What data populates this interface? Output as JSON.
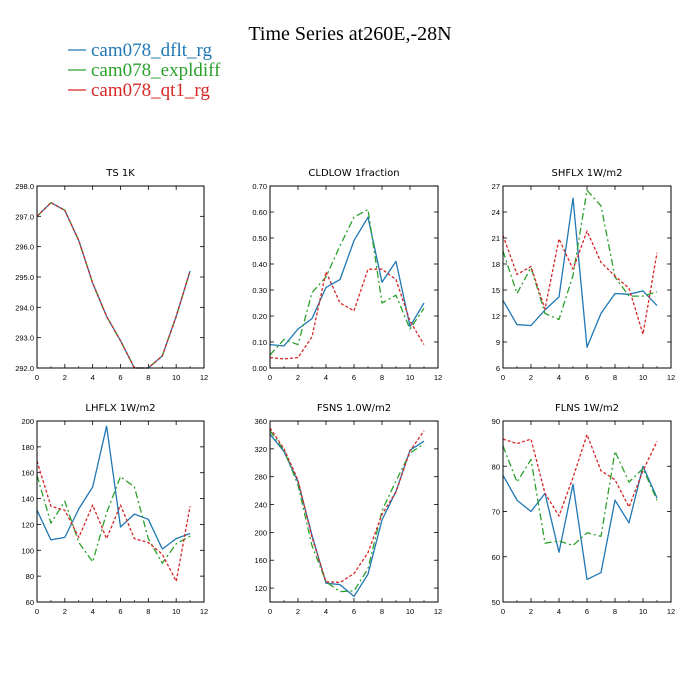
{
  "title": "Time Series at260E,-28N",
  "legend": [
    {
      "name": "cam078_dflt_rg",
      "color": "#1f77b4",
      "dash": ""
    },
    {
      "name": "cam078_expldiff",
      "color": "#2ca02c",
      "dash": "7,3,2,3"
    },
    {
      "name": "cam078_qt1_rg",
      "color": "#d62728",
      "dash": "3,2"
    }
  ],
  "chart_data": [
    {
      "type": "line",
      "title": "TS   1K",
      "x": [
        0,
        1,
        2,
        3,
        4,
        5,
        6,
        7,
        8,
        9,
        10,
        11
      ],
      "xlim": [
        0,
        12
      ],
      "xticks": [
        0,
        2,
        4,
        6,
        8,
        10,
        12
      ],
      "ylim": [
        292.0,
        298.0
      ],
      "yticks": [
        "292.0",
        "293.0",
        "294.0",
        "295.0",
        "296.0",
        "297.0",
        "298.0"
      ],
      "series": [
        {
          "name": "cam078_dflt_rg",
          "values": [
            297.0,
            297.45,
            297.2,
            296.2,
            294.8,
            293.7,
            292.9,
            292.0,
            292.0,
            292.4,
            293.7,
            295.2
          ]
        },
        {
          "name": "cam078_expldiff",
          "values": [
            297.0,
            297.45,
            297.2,
            296.2,
            294.8,
            293.7,
            292.9,
            292.0,
            292.0,
            292.4,
            293.7,
            295.2
          ]
        },
        {
          "name": "cam078_qt1_rg",
          "values": [
            297.0,
            297.45,
            297.2,
            296.2,
            294.8,
            293.7,
            292.9,
            292.0,
            292.0,
            292.4,
            293.7,
            295.2
          ]
        }
      ]
    },
    {
      "type": "line",
      "title": "CLDLOW   1fraction",
      "x": [
        0,
        1,
        2,
        3,
        4,
        5,
        6,
        7,
        8,
        9,
        10,
        11
      ],
      "xlim": [
        0,
        12
      ],
      "xticks": [
        0,
        2,
        4,
        6,
        8,
        10,
        12
      ],
      "ylim": [
        0.0,
        0.7
      ],
      "yticks": [
        "0.00",
        "0.10",
        "0.20",
        "0.30",
        "0.40",
        "0.50",
        "0.60",
        "0.70"
      ],
      "series": [
        {
          "name": "cam078_dflt_rg",
          "values": [
            0.09,
            0.085,
            0.15,
            0.19,
            0.31,
            0.34,
            0.49,
            0.58,
            0.33,
            0.41,
            0.16,
            0.25
          ]
        },
        {
          "name": "cam078_expldiff",
          "values": [
            0.05,
            0.11,
            0.09,
            0.29,
            0.35,
            0.47,
            0.58,
            0.61,
            0.25,
            0.28,
            0.15,
            0.23
          ]
        },
        {
          "name": "cam078_qt1_rg",
          "values": [
            0.04,
            0.035,
            0.04,
            0.12,
            0.37,
            0.25,
            0.22,
            0.38,
            0.38,
            0.34,
            0.18,
            0.09
          ]
        }
      ]
    },
    {
      "type": "line",
      "title": "SHFLX   1W/m2",
      "x": [
        0,
        1,
        2,
        3,
        4,
        5,
        6,
        7,
        8,
        9,
        10,
        11
      ],
      "xlim": [
        0,
        12
      ],
      "xticks": [
        0,
        2,
        4,
        6,
        8,
        10,
        12
      ],
      "ylim": [
        6,
        27
      ],
      "yticks": [
        "6",
        "9",
        "12",
        "15",
        "18",
        "21",
        "24",
        "27"
      ],
      "series": [
        {
          "name": "cam078_dflt_rg",
          "values": [
            13.8,
            11.0,
            10.9,
            12.7,
            14.2,
            25.6,
            8.4,
            12.3,
            14.6,
            14.5,
            14.9,
            13.2
          ]
        },
        {
          "name": "cam078_expldiff",
          "values": [
            19.5,
            14.6,
            17.6,
            12.3,
            11.6,
            16.7,
            26.5,
            24.7,
            16.5,
            14.3,
            14.3,
            14.8
          ]
        },
        {
          "name": "cam078_qt1_rg",
          "values": [
            21.3,
            16.8,
            17.7,
            12.8,
            20.9,
            17.4,
            21.8,
            18.2,
            16.6,
            15.2,
            9.9,
            19.3
          ]
        }
      ]
    },
    {
      "type": "line",
      "title": "LHFLX   1W/m2",
      "x": [
        0,
        1,
        2,
        3,
        4,
        5,
        6,
        7,
        8,
        9,
        10,
        11
      ],
      "xlim": [
        0,
        12
      ],
      "xticks": [
        0,
        2,
        4,
        6,
        8,
        10,
        12
      ],
      "ylim": [
        60,
        200
      ],
      "yticks": [
        "60",
        "80",
        "100",
        "120",
        "140",
        "160",
        "180",
        "200"
      ],
      "series": [
        {
          "name": "cam078_dflt_rg",
          "values": [
            131,
            108,
            110,
            132,
            149,
            196,
            118,
            128,
            124,
            101,
            109,
            113
          ]
        },
        {
          "name": "cam078_expldiff",
          "values": [
            158,
            121,
            138,
            106,
            91,
            129,
            157,
            149,
            109,
            90,
            105,
            111
          ]
        },
        {
          "name": "cam078_qt1_rg",
          "values": [
            169,
            134,
            131,
            110,
            135,
            109,
            135,
            109,
            106,
            97,
            76,
            134
          ]
        }
      ]
    },
    {
      "type": "line",
      "title": "FSNS   1.0W/m2",
      "x": [
        0,
        1,
        2,
        3,
        4,
        5,
        6,
        7,
        8,
        9,
        10,
        11
      ],
      "xlim": [
        0,
        12
      ],
      "xticks": [
        0,
        2,
        4,
        6,
        8,
        10,
        12
      ],
      "ylim": [
        100,
        360
      ],
      "yticks": [
        "120",
        "160",
        "200",
        "240",
        "280",
        "320",
        "360"
      ],
      "series": [
        {
          "name": "cam078_dflt_rg",
          "values": [
            341,
            316,
            273,
            196,
            127,
            125,
            108,
            140,
            218,
            259,
            318,
            331
          ]
        },
        {
          "name": "cam078_expldiff",
          "values": [
            346,
            318,
            268,
            181,
            129,
            115,
            116,
            148,
            231,
            274,
            314,
            327
          ]
        },
        {
          "name": "cam078_qt1_rg",
          "values": [
            350,
            320,
            275,
            193,
            129,
            128,
            141,
            171,
            226,
            258,
            317,
            346
          ]
        }
      ]
    },
    {
      "type": "line",
      "title": "FLNS   1W/m2",
      "x": [
        0,
        1,
        2,
        3,
        4,
        5,
        6,
        7,
        8,
        9,
        10,
        11
      ],
      "xlim": [
        0,
        12
      ],
      "xticks": [
        0,
        2,
        4,
        6,
        8,
        10,
        12
      ],
      "ylim": [
        50,
        90
      ],
      "yticks": [
        "50",
        "60",
        "70",
        "80",
        "90"
      ],
      "series": [
        {
          "name": "cam078_dflt_rg",
          "values": [
            78,
            72.5,
            70,
            74,
            61,
            76,
            55,
            56.5,
            72.5,
            67.5,
            80,
            73
          ]
        },
        {
          "name": "cam078_expldiff",
          "values": [
            84.5,
            76.5,
            81.5,
            63,
            63.5,
            62.5,
            65.3,
            64.5,
            83.3,
            76.5,
            79.5,
            72.5
          ]
        },
        {
          "name": "cam078_qt1_rg",
          "values": [
            86,
            85,
            86,
            74,
            69,
            77.5,
            87,
            79,
            77,
            71,
            79,
            85.5
          ]
        }
      ]
    }
  ]
}
